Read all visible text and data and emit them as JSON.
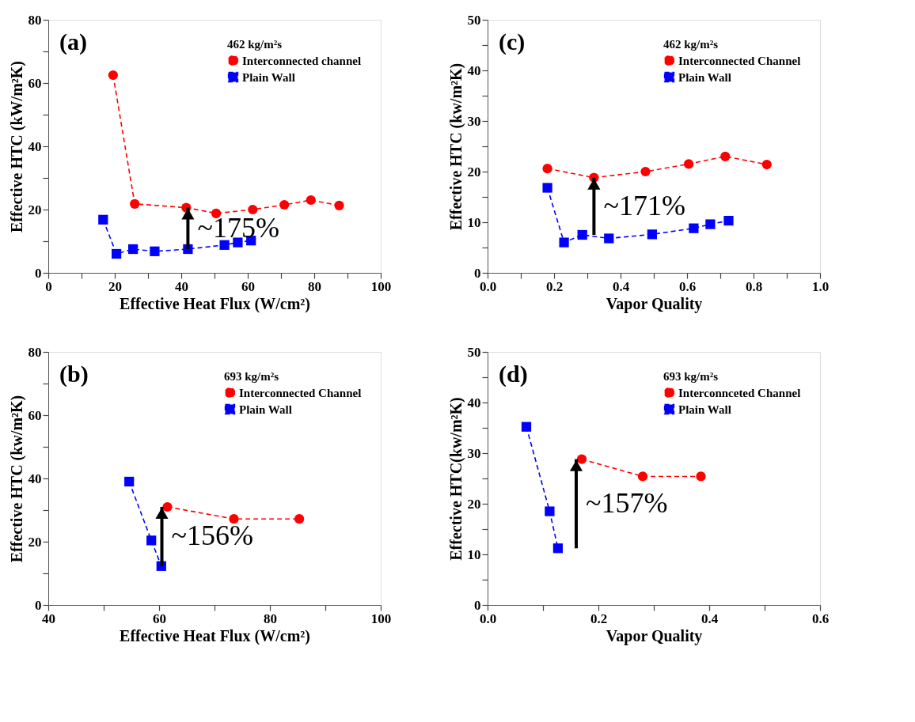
{
  "chart_data": [
    {
      "type": "line",
      "xlabel": "Effective Heat Flux (W/cm²)",
      "ylabel": "Effective HTC (kW/m²K)",
      "legend_title": "462 kg/m²s",
      "legend": "top right",
      "line_style": "dashed",
      "grid": false,
      "xlim": [
        0,
        100
      ],
      "xticks": [
        0,
        {
          "value": 10,
          "label": null
        },
        20,
        {
          "value": 30,
          "label": null
        },
        40,
        {
          "value": 50,
          "label": null
        },
        60,
        {
          "value": 70,
          "label": null
        },
        80,
        {
          "value": 90,
          "label": null
        },
        100
      ],
      "ylim": [
        0,
        80
      ],
      "yticks": [
        0,
        {
          "value": 10,
          "label": null
        },
        20,
        {
          "value": 30,
          "label": null
        },
        40,
        {
          "value": 50,
          "label": null
        },
        60,
        {
          "value": 70,
          "label": null
        },
        80
      ],
      "annotations": [
        "(a)",
        {
          "text": "~175%",
          "x": 42,
          "y": 20.6
        }
      ],
      "series": [
        {
          "name": "Interconnected channel",
          "color": "#ff0000",
          "marker": "circle",
          "x": [
            19.5,
            26,
            41.5,
            50.5,
            61.5,
            71,
            79,
            87.5
          ],
          "values": [
            62.5,
            21.8,
            20.6,
            18.8,
            20,
            21.5,
            23,
            21.3
          ]
        },
        {
          "name": "Plain Wall",
          "color": "#0000ff",
          "marker": "square",
          "x": [
            16.5,
            20.5,
            25.5,
            32,
            42,
            53,
            57,
            61
          ],
          "values": [
            16.8,
            6,
            7.5,
            6.8,
            7.5,
            8.8,
            9.6,
            10.2
          ]
        }
      ]
    },
    {
      "type": "line",
      "xlabel": "Vapor Quality",
      "ylabel": "Effective HTC (kw/m²K)",
      "legend_title": "462 kg/m²s",
      "legend": "top right",
      "line_style": "dashed",
      "grid": false,
      "xlim": [
        0,
        1
      ],
      "xticks": [
        {
          "value": 0,
          "label": "0.0"
        },
        {
          "value": 0.1,
          "label": null
        },
        {
          "value": 0.2,
          "label": "0.2"
        },
        {
          "value": 0.3,
          "label": null
        },
        {
          "value": 0.4,
          "label": "0.4"
        },
        {
          "value": 0.5,
          "label": null
        },
        {
          "value": 0.6,
          "label": "0.6"
        },
        {
          "value": 0.7,
          "label": null
        },
        {
          "value": 0.8,
          "label": "0.8"
        },
        {
          "value": 0.9,
          "label": null
        },
        {
          "value": 1,
          "label": "1.0"
        }
      ],
      "ylim": [
        0,
        50
      ],
      "yticks": [
        0,
        {
          "value": 5,
          "label": null
        },
        10,
        {
          "value": 15,
          "label": null
        },
        20,
        {
          "value": 25,
          "label": null
        },
        30,
        {
          "value": 35,
          "label": null
        },
        40,
        {
          "value": 45,
          "label": null
        },
        50
      ],
      "annotations": [
        "(c)",
        {
          "text": "~171%",
          "x": 0.32,
          "y": 18.8
        }
      ],
      "series": [
        {
          "name": "Interconnected Channel",
          "color": "#ff0000",
          "marker": "circle",
          "x": [
            0.18,
            0.32,
            0.475,
            0.605,
            0.715,
            0.84
          ],
          "values": [
            20.6,
            18.8,
            20,
            21.5,
            23,
            21.4
          ]
        },
        {
          "name": "Plain Wall",
          "color": "#0000ff",
          "marker": "square",
          "x": [
            0.18,
            0.23,
            0.285,
            0.365,
            0.495,
            0.62,
            0.67,
            0.725
          ],
          "values": [
            16.8,
            6,
            7.5,
            6.8,
            7.6,
            8.8,
            9.6,
            10.3
          ]
        }
      ]
    },
    {
      "type": "line",
      "xlabel": "Effective Heat Flux (W/cm²)",
      "ylabel": "Effective HTC (kw/m²K)",
      "legend_title": "693 kg/m²s",
      "legend": "top right",
      "line_style": "dashed",
      "grid": false,
      "xlim": [
        40,
        100
      ],
      "xticks": [
        40,
        {
          "value": 50,
          "label": null
        },
        60,
        {
          "value": 70,
          "label": null
        },
        80,
        {
          "value": 90,
          "label": null
        },
        100
      ],
      "ylim": [
        0,
        80
      ],
      "yticks": [
        0,
        {
          "value": 10,
          "label": null
        },
        20,
        {
          "value": 30,
          "label": null
        },
        40,
        {
          "value": 50,
          "label": null
        },
        60,
        {
          "value": 70,
          "label": null
        },
        80
      ],
      "annotations": [
        "(b)",
        {
          "text": "~156%",
          "x": 60.5,
          "y": 31
        }
      ],
      "series": [
        {
          "name": "Interconnected Channel",
          "color": "#ff0000",
          "marker": "circle",
          "x": [
            61.5,
            73.5,
            85.3
          ],
          "values": [
            31,
            27.2,
            27.2
          ]
        },
        {
          "name": "Plain Wall",
          "color": "#0000ff",
          "marker": "square",
          "x": [
            54.6,
            58.6,
            60.4
          ],
          "values": [
            39,
            20.4,
            12.3
          ]
        }
      ]
    },
    {
      "type": "line",
      "xlabel": "Vapor Quality",
      "ylabel": "Effective HTC(kw/m²K)",
      "legend_title": "693 kg/m²s",
      "legend": "top right",
      "line_style": "dashed",
      "grid": false,
      "xlim": [
        0,
        0.6
      ],
      "xticks": [
        {
          "value": 0,
          "label": "0.0"
        },
        {
          "value": 0.1,
          "label": null
        },
        {
          "value": 0.2,
          "label": "0.2"
        },
        {
          "value": 0.3,
          "label": null
        },
        {
          "value": 0.4,
          "label": "0.4"
        },
        {
          "value": 0.5,
          "label": null
        },
        {
          "value": 0.6,
          "label": "0.6"
        }
      ],
      "ylim": [
        0,
        50
      ],
      "yticks": [
        0,
        {
          "value": 5,
          "label": null
        },
        10,
        {
          "value": 15,
          "label": null
        },
        20,
        {
          "value": 25,
          "label": null
        },
        30,
        {
          "value": 35,
          "label": null
        },
        40,
        {
          "value": 45,
          "label": null
        },
        50
      ],
      "annotations": [
        "(d)",
        {
          "text": "~157%",
          "x": 0.16,
          "y": 28.8
        }
      ],
      "series": [
        {
          "name": "Interconnceted Channel",
          "color": "#ff0000",
          "marker": "circle",
          "x": [
            0.17,
            0.28,
            0.385
          ],
          "values": [
            28.8,
            25.4,
            25.4
          ]
        },
        {
          "name": "Plain Wall",
          "color": "#0000ff",
          "marker": "square",
          "x": [
            0.07,
            0.112,
            0.127
          ],
          "values": [
            35.2,
            18.5,
            11.2
          ]
        }
      ]
    }
  ]
}
